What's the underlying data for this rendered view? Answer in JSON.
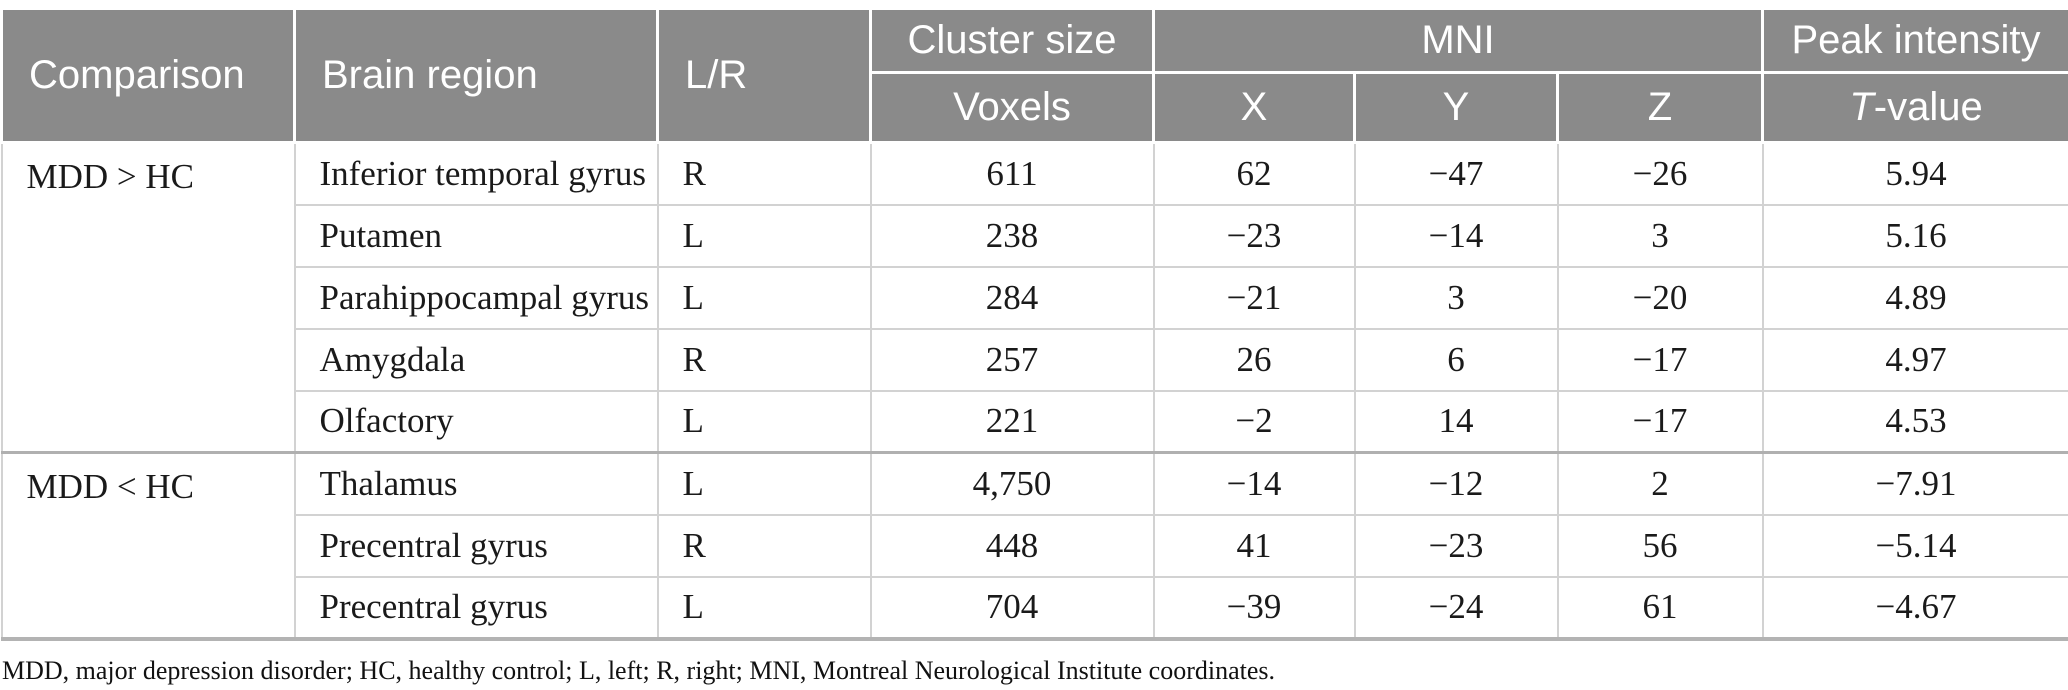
{
  "table": {
    "header": {
      "comparison": "Comparison",
      "brain_region": "Brain region",
      "lr": "L/R",
      "cluster_size": "Cluster size",
      "voxels": "Voxels",
      "mni": "MNI",
      "x": "X",
      "y": "Y",
      "z": "Z",
      "peak_intensity": "Peak intensity",
      "t_italic": "T",
      "t_rest": "-value"
    },
    "groups": [
      {
        "comparison": "MDD > HC",
        "rows": [
          {
            "region": "Inferior temporal gyrus",
            "lr": "R",
            "voxels": "611",
            "x": "62",
            "y": "−47",
            "z": "−26",
            "t": "5.94"
          },
          {
            "region": "Putamen",
            "lr": "L",
            "voxels": "238",
            "x": "−23",
            "y": "−14",
            "z": "3",
            "t": "5.16"
          },
          {
            "region": "Parahippocampal gyrus",
            "lr": "L",
            "voxels": "284",
            "x": "−21",
            "y": "3",
            "z": "−20",
            "t": "4.89"
          },
          {
            "region": "Amygdala",
            "lr": "R",
            "voxels": "257",
            "x": "26",
            "y": "6",
            "z": "−17",
            "t": "4.97"
          },
          {
            "region": "Olfactory",
            "lr": "L",
            "voxels": "221",
            "x": "−2",
            "y": "14",
            "z": "−17",
            "t": "4.53"
          }
        ]
      },
      {
        "comparison": "MDD < HC",
        "rows": [
          {
            "region": "Thalamus",
            "lr": "L",
            "voxels": "4,750",
            "x": "−14",
            "y": "−12",
            "z": "2",
            "t": "−7.91"
          },
          {
            "region": "Precentral gyrus",
            "lr": "R",
            "voxels": "448",
            "x": "41",
            "y": "−23",
            "z": "56",
            "t": "−5.14"
          },
          {
            "region": "Precentral gyrus",
            "lr": "L",
            "voxels": "704",
            "x": "−39",
            "y": "−24",
            "z": "61",
            "t": "−4.67"
          }
        ]
      }
    ],
    "footnote": "MDD, major depression disorder; HC, healthy control; L, left; R, right; MNI, Montreal Neurological Institute coordinates.",
    "colors": {
      "header_bg": "#8a8a8a",
      "header_text": "#ffffff",
      "row_line": "#d2d2d2",
      "group_line": "#b0b0b0",
      "body_text": "#1a1a1a"
    }
  }
}
